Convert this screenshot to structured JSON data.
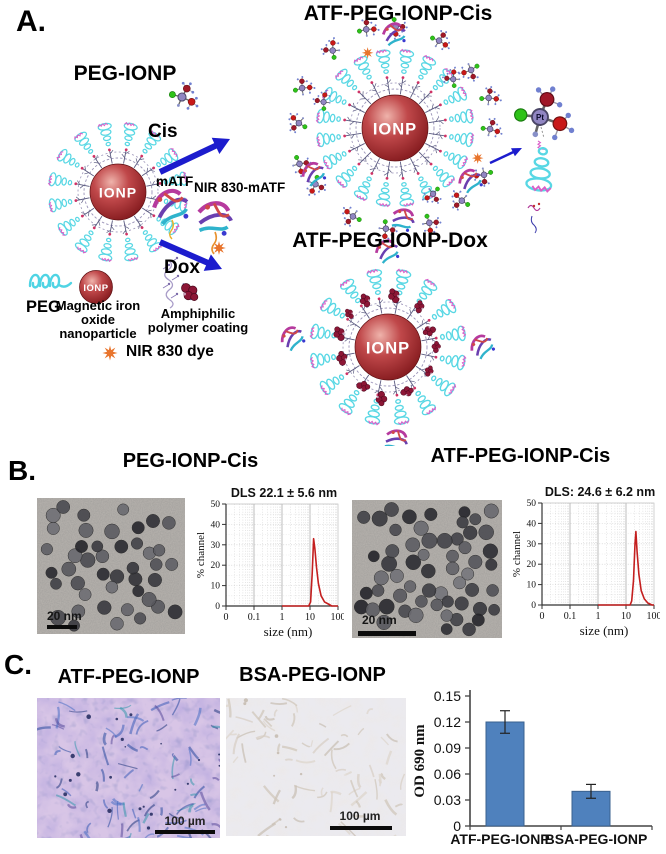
{
  "figure": {
    "panel_a": {
      "label": "A.",
      "peg_ionp_title": "PEG-IONP",
      "atf_cis_title": "ATF-PEG-IONP-Cis",
      "atf_dox_title": "ATF-PEG-IONP-Dox",
      "cis_label": "Cis",
      "matf_label": "mATF",
      "nir_matf_label": "NIR 830-mATF",
      "dox_label": "Dox",
      "ionp_core_label": "IONP",
      "pt_atom_label": "Pt",
      "legend": {
        "peg_label": "PEG",
        "ionp_label": "Magnetic iron oxide nanoparticle",
        "polymer_label": "Amphiphilic polymer coating",
        "nir_dye_label": "NIR 830 dye"
      }
    },
    "panel_b": {
      "label": "B.",
      "left_title": "PEG-IONP-Cis",
      "right_title": "ATF-PEG-IONP-Cis",
      "left_scale_bar": "20 nm",
      "right_scale_bar": "20 nm"
    },
    "panel_c": {
      "label": "C.",
      "left_title": "ATF-PEG-IONP",
      "right_title": "BSA-PEG-IONP",
      "left_scale_bar": "100 µm",
      "right_scale_bar": "100 µm"
    }
  },
  "chart_data": [
    {
      "type": "line",
      "panel": "B-left",
      "title": "DLS 22.1 ± 5.6 nm",
      "xlabel": "size (nm)",
      "ylabel": "% channel",
      "x_scale": "log",
      "xtick_labels": [
        "0",
        "0.1",
        "1",
        "10",
        "100"
      ],
      "yticks": [
        0,
        10,
        20,
        30,
        40,
        50
      ],
      "ylim": [
        0,
        50
      ],
      "grid": true,
      "curve_color": "#c41f1f",
      "mean_nm": 22.1,
      "sd_nm": 5.6,
      "points": [
        [
          1,
          0
        ],
        [
          9,
          0
        ],
        [
          10.5,
          2
        ],
        [
          12,
          16
        ],
        [
          13.5,
          33
        ],
        [
          15,
          28
        ],
        [
          17,
          19
        ],
        [
          20,
          11
        ],
        [
          25,
          5
        ],
        [
          33,
          2
        ],
        [
          45,
          1
        ],
        [
          60,
          0
        ],
        [
          250,
          0
        ]
      ]
    },
    {
      "type": "line",
      "panel": "B-right",
      "title": "DLS: 24.6 ± 6.2 nm",
      "xlabel": "size (nm)",
      "ylabel": "% channel",
      "x_scale": "log",
      "xtick_labels": [
        "0",
        "0.1",
        "1",
        "10",
        "100"
      ],
      "yticks": [
        0,
        10,
        20,
        30,
        40,
        50
      ],
      "ylim": [
        0,
        50
      ],
      "grid": true,
      "curve_color": "#c41f1f",
      "mean_nm": 24.6,
      "sd_nm": 6.2,
      "points": [
        [
          1,
          0
        ],
        [
          14,
          0
        ],
        [
          16,
          2
        ],
        [
          18.5,
          12
        ],
        [
          21,
          30
        ],
        [
          22.5,
          36
        ],
        [
          25,
          26
        ],
        [
          29,
          15
        ],
        [
          35,
          7
        ],
        [
          45,
          3
        ],
        [
          60,
          1
        ],
        [
          85,
          0
        ],
        [
          300,
          0
        ]
      ]
    },
    {
      "type": "bar",
      "panel": "C",
      "categories": [
        "ATF-PEG-IONP",
        "BSA-PEG-IONP"
      ],
      "values": [
        0.12,
        0.04
      ],
      "errors": [
        0.013,
        0.008
      ],
      "ylabel": "OD 690 nm",
      "yticks": [
        0,
        0.03,
        0.06,
        0.09,
        0.12,
        0.15
      ],
      "ylim": [
        0,
        0.15
      ],
      "bar_color": "#4f81bd",
      "legend_position": "none"
    }
  ],
  "colors": {
    "dls_curve": "#c41f1f",
    "bar_fill": "#4f81bd",
    "arrow_blue": "#1c1ccd",
    "ionp_core": "#8b1a1a",
    "peg_cyan": "#5fd9e6",
    "nir_star_orange": "#e8742c"
  }
}
